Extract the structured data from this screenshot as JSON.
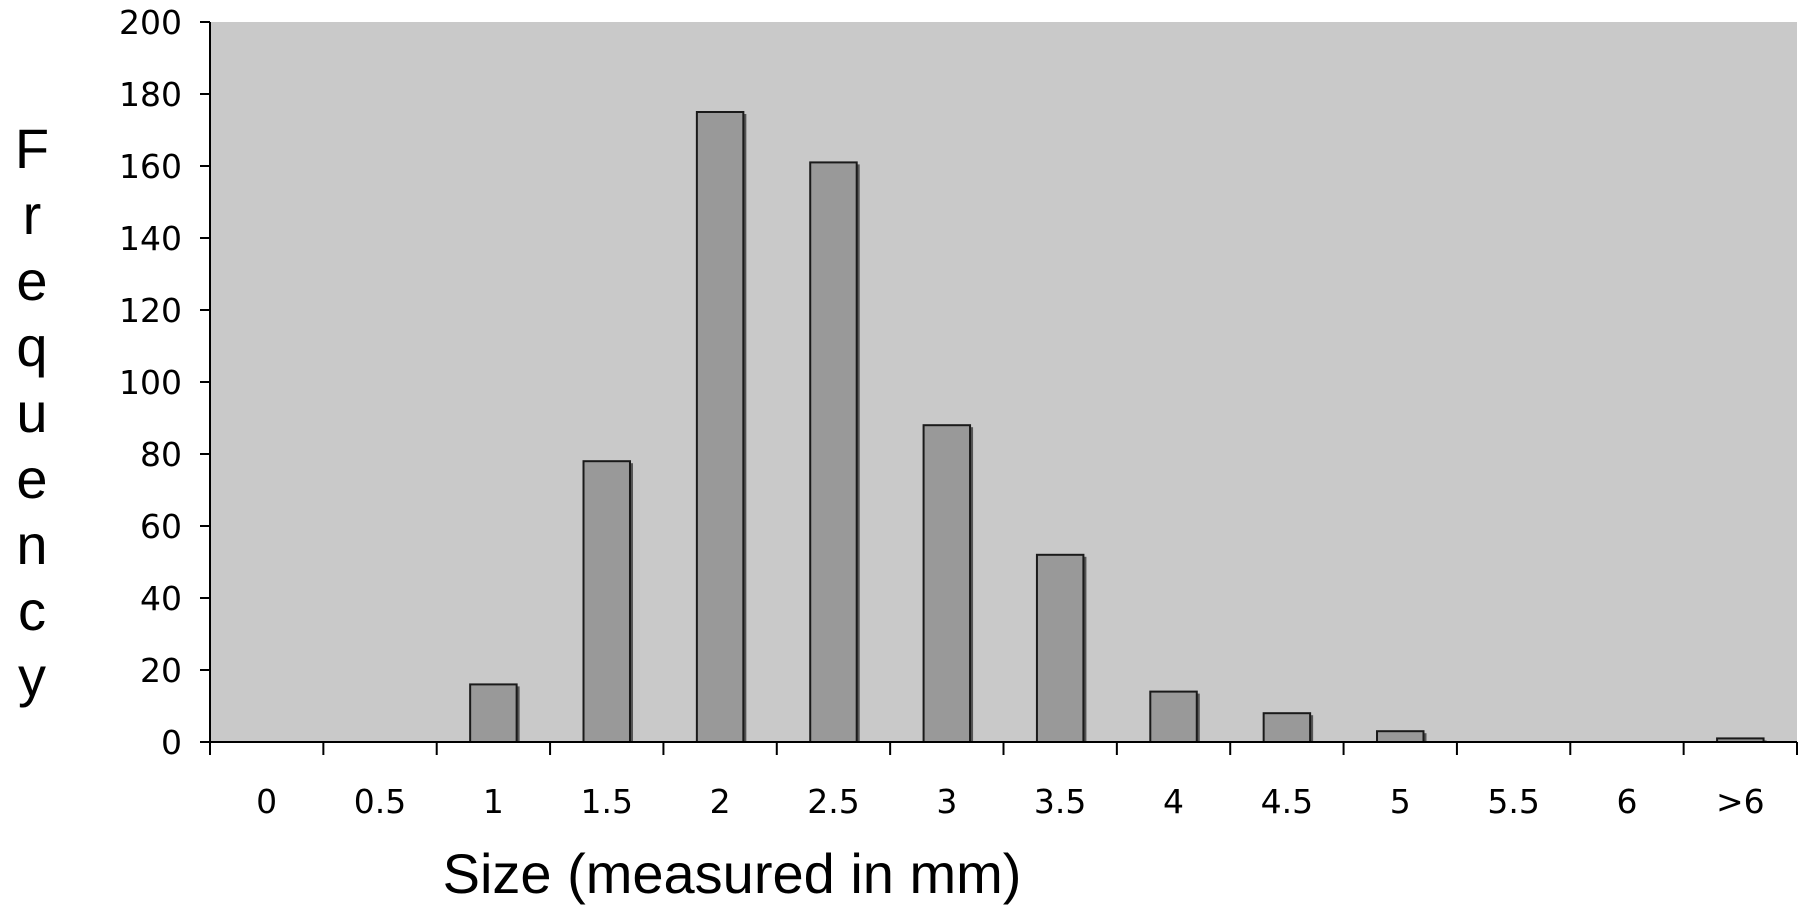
{
  "chart_data": {
    "type": "bar",
    "categories": [
      "0",
      "0.5",
      "1",
      "1.5",
      "2",
      "2.5",
      "3",
      "3.5",
      "4",
      "4.5",
      "5",
      "5.5",
      "6",
      ">6"
    ],
    "values": [
      0,
      0,
      16,
      78,
      175,
      161,
      88,
      52,
      14,
      8,
      3,
      0,
      0,
      1
    ],
    "xlabel": "Size (measured in mm)",
    "ylabel": "Frequency",
    "ylim": [
      0,
      200
    ],
    "yticks": [
      "0",
      "20",
      "40",
      "60",
      "80",
      "100",
      "120",
      "140",
      "160",
      "180",
      "200"
    ],
    "grid": false,
    "colors": {
      "plot_background": "#c9c9c9",
      "bar_fill": "#999999",
      "bar_edge": "#1a1a1a"
    }
  }
}
